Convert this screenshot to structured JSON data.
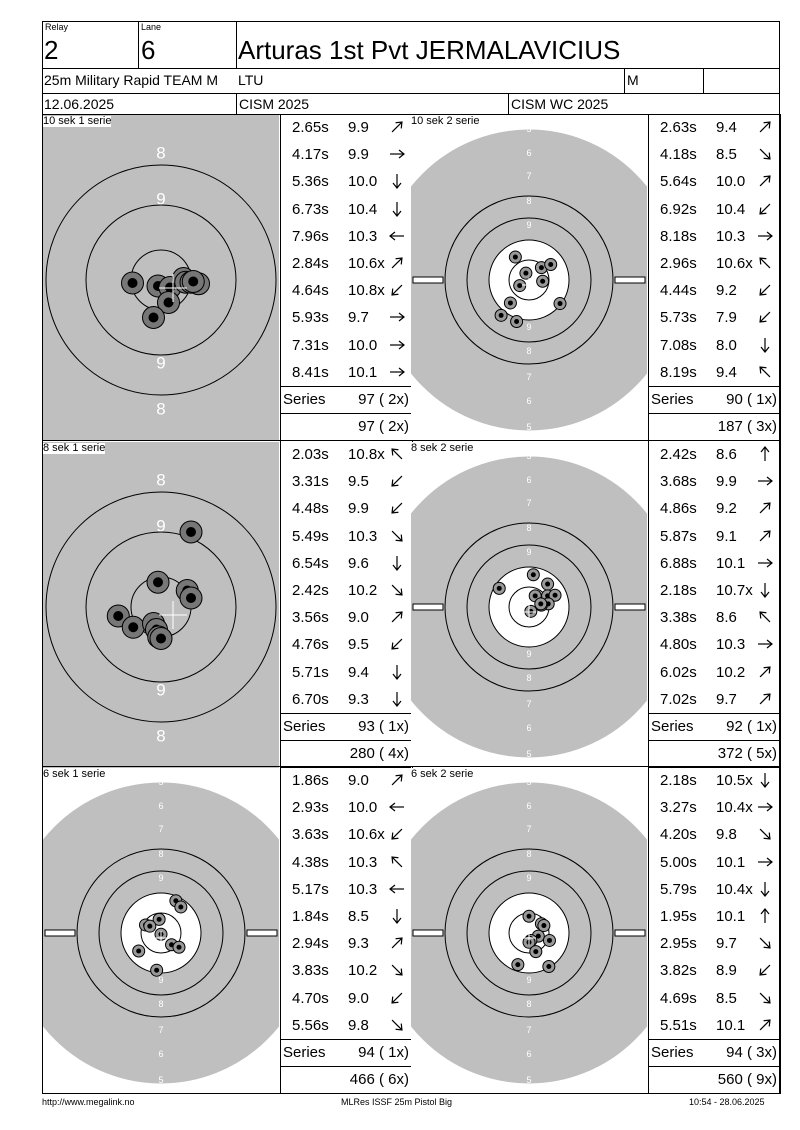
{
  "header": {
    "relay_label": "Relay",
    "relay_value": "2",
    "lane_label": "Lane",
    "lane_value": "6",
    "shooter_name": "Arturas 1st Pvt JERMALAVICIUS",
    "event": "25m Military Rapid TEAM M",
    "nation": "LTU",
    "gender": "M",
    "date": "12.06.2025",
    "competition": "CISM 2025",
    "championship": "CISM WC 2025"
  },
  "series": [
    {
      "label": "10 sek 1 serie",
      "target": "precision",
      "shots": [
        {
          "time": "2.65s",
          "score": "9.9",
          "dir": "ne"
        },
        {
          "time": "4.17s",
          "score": "9.9",
          "dir": "e"
        },
        {
          "time": "5.36s",
          "score": "10.0",
          "dir": "s"
        },
        {
          "time": "6.73s",
          "score": "10.4",
          "dir": "s"
        },
        {
          "time": "7.96s",
          "score": "10.3",
          "dir": "w"
        },
        {
          "time": "2.84s",
          "score": "10.6x",
          "dir": "ne"
        },
        {
          "time": "4.64s",
          "score": "10.8x",
          "dir": "sw"
        },
        {
          "time": "5.93s",
          "score": "9.7",
          "dir": "e"
        },
        {
          "time": "7.31s",
          "score": "10.0",
          "dir": "e"
        },
        {
          "time": "8.41s",
          "score": "10.1",
          "dir": "e"
        }
      ],
      "series_label": "Series",
      "series_total": "97 ( 2x)",
      "running_total": "97 ( 2x)",
      "hits": [
        [
          -0.38,
          0.04
        ],
        [
          -0.04,
          0.08
        ],
        [
          0.12,
          0.1
        ],
        [
          0.3,
          -0.02
        ],
        [
          0.33,
          0.03
        ],
        [
          0.4,
          0.03
        ],
        [
          0.5,
          0.05
        ],
        [
          0.43,
          0.02
        ],
        [
          0.1,
          0.3
        ],
        [
          -0.1,
          0.5
        ]
      ]
    },
    {
      "label": "10 sek 2 serie",
      "target": "rapid",
      "shots": [
        {
          "time": "2.63s",
          "score": "9.4",
          "dir": "ne"
        },
        {
          "time": "4.18s",
          "score": "8.5",
          "dir": "se"
        },
        {
          "time": "5.64s",
          "score": "10.0",
          "dir": "ne"
        },
        {
          "time": "6.92s",
          "score": "10.4",
          "dir": "sw"
        },
        {
          "time": "8.18s",
          "score": "10.3",
          "dir": "e"
        },
        {
          "time": "2.96s",
          "score": "10.6x",
          "dir": "nw"
        },
        {
          "time": "4.44s",
          "score": "9.2",
          "dir": "sw"
        },
        {
          "time": "5.73s",
          "score": "7.9",
          "dir": "sw"
        },
        {
          "time": "7.08s",
          "score": "8.0",
          "dir": "s"
        },
        {
          "time": "8.19s",
          "score": "9.4",
          "dir": "nw"
        }
      ],
      "series_label": "Series",
      "series_total": "90 ( 1x)",
      "running_total": "187 ( 3x)",
      "hits": [
        [
          -0.22,
          -0.37
        ],
        [
          0.2,
          -0.2
        ],
        [
          0.35,
          -0.25
        ],
        [
          -0.05,
          -0.11
        ],
        [
          0.22,
          0.02
        ],
        [
          -0.15,
          0.09
        ],
        [
          -0.3,
          0.37
        ],
        [
          0.5,
          0.38
        ],
        [
          -0.45,
          0.57
        ],
        [
          -0.2,
          0.67
        ]
      ]
    },
    {
      "label": "8 sek 1 serie",
      "target": "precision",
      "shots": [
        {
          "time": "2.03s",
          "score": "10.8x",
          "dir": "nw"
        },
        {
          "time": "3.31s",
          "score": "9.5",
          "dir": "sw"
        },
        {
          "time": "4.48s",
          "score": "9.9",
          "dir": "sw"
        },
        {
          "time": "5.49s",
          "score": "10.3",
          "dir": "se"
        },
        {
          "time": "6.54s",
          "score": "9.6",
          "dir": "s"
        },
        {
          "time": "2.42s",
          "score": "10.2",
          "dir": "se"
        },
        {
          "time": "3.56s",
          "score": "9.0",
          "dir": "ne"
        },
        {
          "time": "4.76s",
          "score": "9.5",
          "dir": "sw"
        },
        {
          "time": "5.71s",
          "score": "9.4",
          "dir": "s"
        },
        {
          "time": "6.70s",
          "score": "9.3",
          "dir": "s"
        }
      ],
      "series_label": "Series",
      "series_total": "93 ( 1x)",
      "running_total": "280 ( 4x)",
      "hits": [
        [
          -0.04,
          -0.33
        ],
        [
          0.35,
          -0.22
        ],
        [
          0.4,
          -0.12
        ],
        [
          -0.57,
          0.12
        ],
        [
          -0.37,
          0.27
        ],
        [
          -0.1,
          0.22
        ],
        [
          -0.06,
          0.3
        ],
        [
          -0.03,
          0.4
        ],
        [
          0.0,
          0.42
        ],
        [
          0.4,
          -1.0
        ]
      ]
    },
    {
      "label": "8 sek 2 serie",
      "target": "rapid",
      "shots": [
        {
          "time": "2.42s",
          "score": "8.6",
          "dir": "n"
        },
        {
          "time": "3.68s",
          "score": "9.9",
          "dir": "e"
        },
        {
          "time": "4.86s",
          "score": "9.2",
          "dir": "ne"
        },
        {
          "time": "5.87s",
          "score": "9.1",
          "dir": "ne"
        },
        {
          "time": "6.88s",
          "score": "10.1",
          "dir": "e"
        },
        {
          "time": "2.18s",
          "score": "10.7x",
          "dir": "s"
        },
        {
          "time": "3.38s",
          "score": "8.6",
          "dir": "nw"
        },
        {
          "time": "4.80s",
          "score": "10.3",
          "dir": "e"
        },
        {
          "time": "6.02s",
          "score": "10.2",
          "dir": "ne"
        },
        {
          "time": "7.02s",
          "score": "9.7",
          "dir": "ne"
        }
      ],
      "series_label": "Series",
      "series_total": "92 ( 1x)",
      "running_total": "372 ( 5x)",
      "hits": [
        [
          0.07,
          -0.52
        ],
        [
          0.3,
          -0.37
        ],
        [
          -0.48,
          -0.3
        ],
        [
          0.1,
          -0.18
        ],
        [
          0.3,
          -0.18
        ],
        [
          0.42,
          -0.19
        ],
        [
          0.31,
          -0.05
        ],
        [
          0.2,
          -0.03
        ],
        [
          0.19,
          -0.05
        ],
        [
          0.03,
          0.07
        ]
      ]
    },
    {
      "label": "6 sek 1 serie",
      "target": "rapid",
      "shots": [
        {
          "time": "1.86s",
          "score": "9.0",
          "dir": "ne"
        },
        {
          "time": "2.93s",
          "score": "10.0",
          "dir": "w"
        },
        {
          "time": "3.63s",
          "score": "10.6x",
          "dir": "sw"
        },
        {
          "time": "4.38s",
          "score": "10.3",
          "dir": "nw"
        },
        {
          "time": "5.17s",
          "score": "10.3",
          "dir": "w"
        },
        {
          "time": "1.84s",
          "score": "8.5",
          "dir": "s"
        },
        {
          "time": "2.94s",
          "score": "9.3",
          "dir": "ne"
        },
        {
          "time": "3.83s",
          "score": "10.2",
          "dir": "se"
        },
        {
          "time": "4.70s",
          "score": "9.0",
          "dir": "sw"
        },
        {
          "time": "5.56s",
          "score": "9.8",
          "dir": "se"
        }
      ],
      "series_label": "Series",
      "series_total": "94 ( 1x)",
      "running_total": "466 ( 6x)",
      "hits": [
        [
          0.24,
          -0.52
        ],
        [
          0.32,
          -0.42
        ],
        [
          -0.03,
          -0.22
        ],
        [
          -0.25,
          -0.13
        ],
        [
          -0.18,
          -0.11
        ],
        [
          0.0,
          0.02
        ],
        [
          0.17,
          0.19
        ],
        [
          0.29,
          0.23
        ],
        [
          -0.36,
          0.29
        ],
        [
          -0.07,
          0.6
        ]
      ]
    },
    {
      "label": "6 sek 2 serie",
      "target": "rapid",
      "shots": [
        {
          "time": "2.18s",
          "score": "10.5x",
          "dir": "s"
        },
        {
          "time": "3.27s",
          "score": "10.4x",
          "dir": "e"
        },
        {
          "time": "4.20s",
          "score": "9.8",
          "dir": "se"
        },
        {
          "time": "5.00s",
          "score": "10.1",
          "dir": "e"
        },
        {
          "time": "5.79s",
          "score": "10.4x",
          "dir": "s"
        },
        {
          "time": "1.95s",
          "score": "10.1",
          "dir": "n"
        },
        {
          "time": "2.95s",
          "score": "9.7",
          "dir": "se"
        },
        {
          "time": "3.82s",
          "score": "8.9",
          "dir": "sw"
        },
        {
          "time": "4.69s",
          "score": "8.5",
          "dir": "se"
        },
        {
          "time": "5.51s",
          "score": "10.1",
          "dir": "ne"
        }
      ],
      "series_label": "Series",
      "series_total": "94 ( 3x)",
      "running_total": "560 ( 9x)",
      "hits": [
        [
          0.0,
          -0.27
        ],
        [
          0.2,
          -0.15
        ],
        [
          0.24,
          -0.12
        ],
        [
          0.15,
          0.05
        ],
        [
          0.03,
          0.12
        ],
        [
          0.0,
          0.15
        ],
        [
          0.33,
          0.12
        ],
        [
          0.11,
          0.3
        ],
        [
          -0.18,
          0.51
        ],
        [
          0.32,
          0.54
        ]
      ]
    }
  ],
  "footer": {
    "url": "http://www.megalink.no",
    "software": "MLRes ISSF 25m Pistol Big",
    "timestamp": "10:54 - 28.06.2025"
  }
}
